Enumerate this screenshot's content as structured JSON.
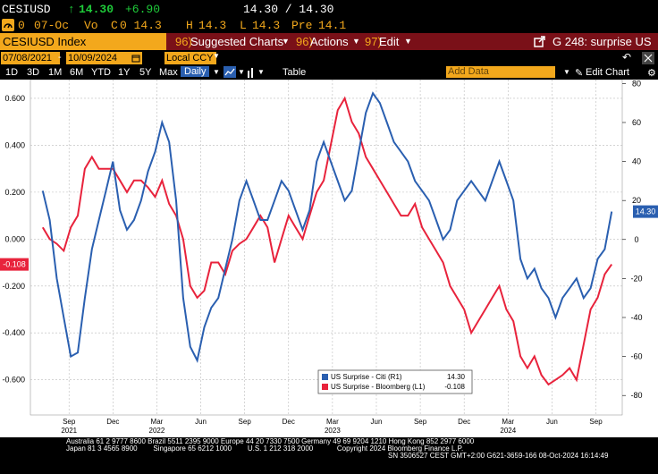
{
  "quote": {
    "ticker": "CESIUSD",
    "arrow": "↑",
    "last": "14.30",
    "change": "+6.90",
    "bid_ask": "14.30 / 14.30",
    "o_label": "0",
    "date": "07-Oc",
    "vo_label": "Vo",
    "c_label": "C",
    "c_value": "0 14.3",
    "h_label": "H",
    "h_value": "14.3",
    "l_label": "L",
    "l_value": "14.3",
    "pre_label": "Pre",
    "pre_value": "14.1"
  },
  "menu": {
    "ticker_field": "CESIUSD Index",
    "suggested_num": "96)",
    "suggested_label": "Suggested Charts",
    "actions_num": "96)",
    "actions_label": "Actions",
    "edit_num": "97)",
    "edit_label": "Edit",
    "chart_title": "G 248: surprise US"
  },
  "range": {
    "start": "07/08/2021",
    "end": "10/09/2024",
    "currency": "Local CCY"
  },
  "toolbar": {
    "periods": [
      "1D",
      "3D",
      "1M",
      "6M",
      "YTD",
      "1Y",
      "5Y",
      "Max"
    ],
    "frequency": "Daily",
    "table_label": "Table",
    "add_data_placeholder": "Add Data",
    "edit_chart_label": "Edit Chart"
  },
  "colors": {
    "citi": "#2a5fb0",
    "bloomberg": "#e8233c",
    "accent": "#f3a81c",
    "menu_bar": "#7a1018"
  },
  "chart_data": {
    "type": "line",
    "x_ticks": [
      "Sep",
      "Dec",
      "Mar",
      "Jun",
      "Sep",
      "Dec",
      "Mar",
      "Jun",
      "Sep",
      "Dec",
      "Mar",
      "Jun",
      "Sep"
    ],
    "year_labels": [
      "2021",
      "2022",
      "2023",
      "2024"
    ],
    "left_axis": {
      "ticks": [
        "0.600",
        "0.400",
        "0.200",
        "0.000",
        "-0.200",
        "-0.400",
        "-0.600"
      ],
      "ylim": [
        -0.75,
        0.68
      ]
    },
    "right_axis": {
      "ticks": [
        "80",
        "60",
        "40",
        "20",
        "0",
        "-20",
        "-40",
        "-60",
        "-80"
      ],
      "ylim": [
        -90,
        82
      ]
    },
    "last_value_tags": {
      "citi": "14.30",
      "bloomberg": "-0.108"
    },
    "legend": {
      "position": "bottom-center",
      "entries": [
        {
          "name": "US Surprise - Citi (R1)",
          "value": "14.30"
        },
        {
          "name": "US Surprise - Bloomberg (L1)",
          "value": "-0.108"
        }
      ]
    },
    "series": [
      {
        "name": "US Surprise - Citi (R1)",
        "axis": "right",
        "x": [
          2021.52,
          2021.56,
          2021.6,
          2021.64,
          2021.68,
          2021.72,
          2021.76,
          2021.8,
          2021.84,
          2021.88,
          2021.92,
          2021.96,
          2022.0,
          2022.04,
          2022.08,
          2022.12,
          2022.16,
          2022.2,
          2022.24,
          2022.28,
          2022.32,
          2022.36,
          2022.4,
          2022.44,
          2022.48,
          2022.52,
          2022.56,
          2022.6,
          2022.64,
          2022.68,
          2022.72,
          2022.76,
          2022.8,
          2022.84,
          2022.88,
          2022.92,
          2022.96,
          2023.0,
          2023.04,
          2023.08,
          2023.12,
          2023.16,
          2023.2,
          2023.24,
          2023.28,
          2023.32,
          2023.36,
          2023.4,
          2023.44,
          2023.48,
          2023.52,
          2023.56,
          2023.6,
          2023.64,
          2023.68,
          2023.72,
          2023.76,
          2023.8,
          2023.84,
          2023.88,
          2023.92,
          2023.96,
          2024.0,
          2024.04,
          2024.08,
          2024.12,
          2024.16,
          2024.2,
          2024.24,
          2024.28,
          2024.32,
          2024.36,
          2024.4,
          2024.44,
          2024.48,
          2024.52,
          2024.56,
          2024.6,
          2024.64,
          2024.68,
          2024.72,
          2024.76
        ],
        "values": [
          25,
          10,
          -20,
          -40,
          -60,
          -58,
          -30,
          -5,
          10,
          25,
          40,
          15,
          5,
          10,
          20,
          35,
          45,
          60,
          50,
          20,
          -30,
          -55,
          -62,
          -45,
          -35,
          -30,
          -15,
          0,
          20,
          30,
          20,
          10,
          10,
          20,
          30,
          25,
          15,
          5,
          15,
          40,
          50,
          40,
          30,
          20,
          25,
          45,
          65,
          75,
          70,
          60,
          50,
          45,
          40,
          30,
          25,
          20,
          10,
          0,
          5,
          20,
          25,
          30,
          25,
          20,
          30,
          40,
          30,
          20,
          -10,
          -20,
          -15,
          -25,
          -30,
          -40,
          -30,
          -25,
          -20,
          -30,
          -25,
          -10,
          -5,
          14.3
        ]
      },
      {
        "name": "US Surprise - Bloomberg (L1)",
        "axis": "left",
        "x": [
          2021.52,
          2021.56,
          2021.6,
          2021.64,
          2021.68,
          2021.72,
          2021.76,
          2021.8,
          2021.84,
          2021.88,
          2021.92,
          2021.96,
          2022.0,
          2022.04,
          2022.08,
          2022.12,
          2022.16,
          2022.2,
          2022.24,
          2022.28,
          2022.32,
          2022.36,
          2022.4,
          2022.44,
          2022.48,
          2022.52,
          2022.56,
          2022.6,
          2022.64,
          2022.68,
          2022.72,
          2022.76,
          2022.8,
          2022.84,
          2022.88,
          2022.92,
          2022.96,
          2023.0,
          2023.04,
          2023.08,
          2023.12,
          2023.16,
          2023.2,
          2023.24,
          2023.28,
          2023.32,
          2023.36,
          2023.4,
          2023.44,
          2023.48,
          2023.52,
          2023.56,
          2023.6,
          2023.64,
          2023.68,
          2023.72,
          2023.76,
          2023.8,
          2023.84,
          2023.88,
          2023.92,
          2023.96,
          2024.0,
          2024.04,
          2024.08,
          2024.12,
          2024.16,
          2024.2,
          2024.24,
          2024.28,
          2024.32,
          2024.36,
          2024.4,
          2024.44,
          2024.48,
          2024.52,
          2024.56,
          2024.6,
          2024.64,
          2024.68,
          2024.72,
          2024.76
        ],
        "values": [
          0.05,
          0.0,
          -0.02,
          -0.05,
          0.05,
          0.1,
          0.3,
          0.35,
          0.3,
          0.3,
          0.3,
          0.25,
          0.2,
          0.25,
          0.25,
          0.22,
          0.18,
          0.25,
          0.15,
          0.1,
          0.0,
          -0.2,
          -0.25,
          -0.22,
          -0.1,
          -0.1,
          -0.15,
          -0.05,
          -0.02,
          0.0,
          0.05,
          0.1,
          0.05,
          -0.1,
          0.0,
          0.1,
          0.05,
          0.0,
          0.1,
          0.2,
          0.25,
          0.4,
          0.55,
          0.6,
          0.5,
          0.45,
          0.35,
          0.3,
          0.25,
          0.2,
          0.15,
          0.1,
          0.1,
          0.15,
          0.05,
          0.0,
          -0.05,
          -0.1,
          -0.2,
          -0.25,
          -0.3,
          -0.4,
          -0.35,
          -0.3,
          -0.25,
          -0.2,
          -0.3,
          -0.35,
          -0.5,
          -0.55,
          -0.5,
          -0.58,
          -0.62,
          -0.6,
          -0.58,
          -0.55,
          -0.6,
          -0.45,
          -0.3,
          -0.25,
          -0.15,
          -0.108
        ]
      }
    ]
  },
  "footer": {
    "line1": "Australia 61 2 9777 8600 Brazil 5511 2395 9000 Europe 44 20 7330 7500 Germany 49 69 9204 1210 Hong Kong 852 2977 6000",
    "line2": "Japan 81 3 4565 8900        Singapore 65 6212 1000        U.S. 1 212 318 2000            Copyright 2024 Bloomberg Finance L.P.",
    "line3": "SN 3506527 CEST GMT+2:00 G621-3659-166 08-Oct-2024 16:14:49"
  }
}
